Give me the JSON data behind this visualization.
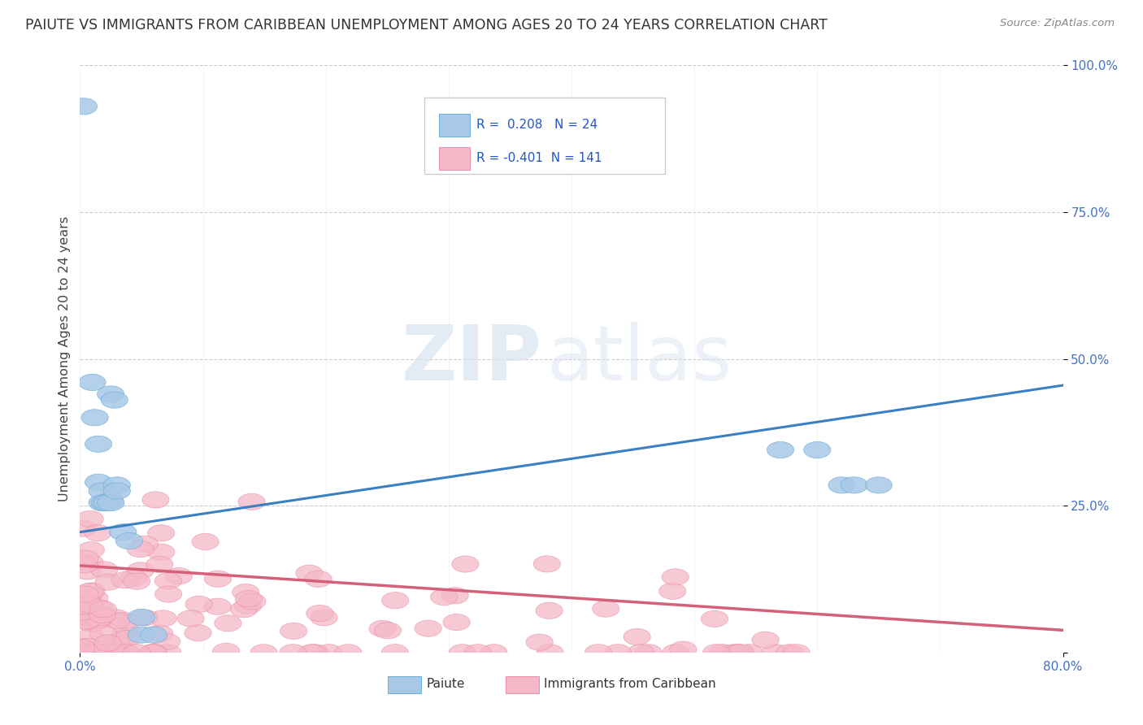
{
  "title": "PAIUTE VS IMMIGRANTS FROM CARIBBEAN UNEMPLOYMENT AMONG AGES 20 TO 24 YEARS CORRELATION CHART",
  "source": "Source: ZipAtlas.com",
  "ylabel": "Unemployment Among Ages 20 to 24 years",
  "xlim": [
    0.0,
    0.8
  ],
  "ylim": [
    0.0,
    1.0
  ],
  "yticks": [
    0.0,
    0.25,
    0.5,
    0.75,
    1.0
  ],
  "ytick_labels": [
    "",
    "25.0%",
    "50.0%",
    "75.0%",
    "100.0%"
  ],
  "watermark_zip": "ZIP",
  "watermark_atlas": "atlas",
  "paiute_R": 0.208,
  "paiute_N": 24,
  "carib_R": -0.401,
  "carib_N": 141,
  "paiute_color": "#a8c8e8",
  "paiute_edge_color": "#6baed6",
  "carib_color": "#f5b8c8",
  "carib_edge_color": "#e88fa8",
  "paiute_line_color": "#3a7fc1",
  "carib_line_color": "#d4607a",
  "background_color": "#ffffff",
  "grid_color": "#cccccc",
  "title_color": "#333333",
  "tick_color": "#4472c4",
  "source_color": "#888888",
  "paiute_trend_x": [
    0.0,
    0.8
  ],
  "paiute_trend_y": [
    0.205,
    0.455
  ],
  "carib_trend_x": [
    0.0,
    0.8
  ],
  "carib_trend_y": [
    0.148,
    0.038
  ],
  "paiute_scatter": [
    [
      0.003,
      0.93
    ],
    [
      0.01,
      0.46
    ],
    [
      0.012,
      0.4
    ],
    [
      0.015,
      0.355
    ],
    [
      0.015,
      0.29
    ],
    [
      0.018,
      0.255
    ],
    [
      0.018,
      0.275
    ],
    [
      0.02,
      0.255
    ],
    [
      0.022,
      0.255
    ],
    [
      0.025,
      0.255
    ],
    [
      0.025,
      0.44
    ],
    [
      0.028,
      0.43
    ],
    [
      0.03,
      0.285
    ],
    [
      0.03,
      0.275
    ],
    [
      0.035,
      0.205
    ],
    [
      0.04,
      0.19
    ],
    [
      0.05,
      0.06
    ],
    [
      0.05,
      0.03
    ],
    [
      0.06,
      0.03
    ],
    [
      0.57,
      0.345
    ],
    [
      0.6,
      0.345
    ],
    [
      0.62,
      0.285
    ],
    [
      0.63,
      0.285
    ],
    [
      0.65,
      0.285
    ]
  ]
}
